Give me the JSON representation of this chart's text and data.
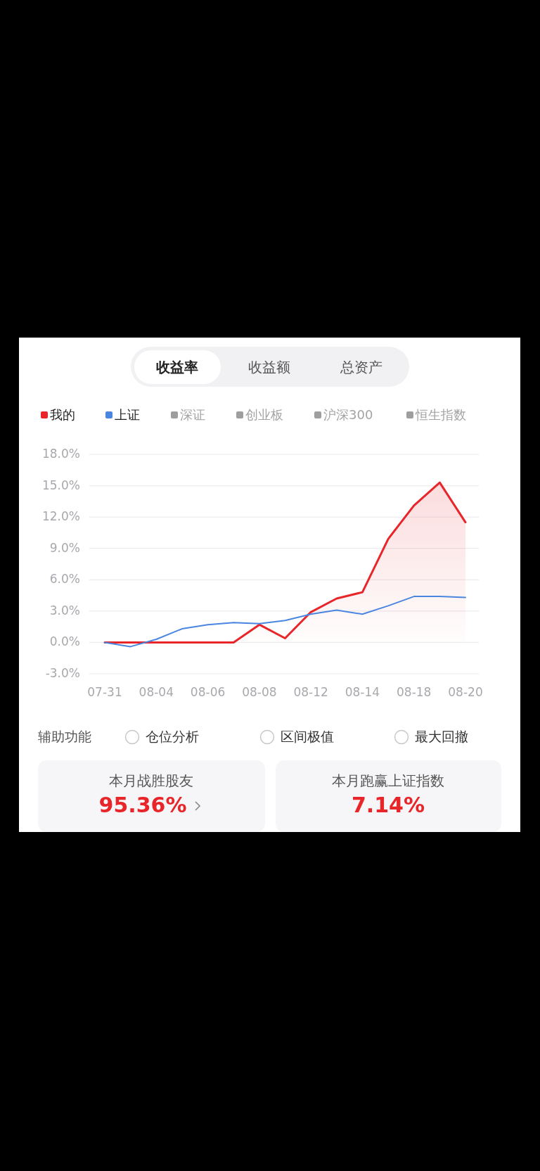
{
  "chart_data": {
    "type": "line",
    "categories": [
      "07-31",
      null,
      "08-04",
      null,
      "08-06",
      null,
      "08-08",
      null,
      "08-12",
      null,
      "08-14",
      null,
      "08-18",
      null,
      "08-20"
    ],
    "series": [
      {
        "name": "我的",
        "type": "area",
        "color": "#e8262a",
        "values": [
          0,
          0,
          0,
          0,
          0,
          0,
          1.7,
          0.4,
          2.9,
          4.2,
          4.8,
          9.9,
          13.1,
          15.3,
          11.5
        ]
      },
      {
        "name": "上证",
        "color": "#4a86e0",
        "values": [
          0,
          -0.4,
          0.3,
          1.3,
          1.7,
          1.9,
          1.8,
          2.1,
          2.7,
          3.1,
          2.7,
          3.5,
          4.4,
          4.4,
          4.3
        ]
      },
      {
        "name": "深证",
        "color": "#9e9e9e",
        "values": [
          null,
          null,
          null,
          null,
          null,
          null,
          null,
          null,
          null,
          null,
          null,
          null,
          null,
          null,
          null
        ]
      },
      {
        "name": "创业板",
        "color": "#9e9e9e",
        "values": [
          null,
          null,
          null,
          null,
          null,
          null,
          null,
          null,
          null,
          null,
          null,
          null,
          null,
          null,
          null
        ]
      },
      {
        "name": "沪深300",
        "color": "#9e9e9e",
        "values": [
          null,
          null,
          null,
          null,
          null,
          null,
          null,
          null,
          null,
          null,
          null,
          null,
          null,
          null,
          null
        ]
      },
      {
        "name": "恒生指数",
        "color": "#9e9e9e",
        "values": [
          null,
          null,
          null,
          null,
          null,
          null,
          null,
          null,
          null,
          null,
          null,
          null,
          null,
          null,
          null
        ]
      }
    ],
    "ylim": [
      -3,
      18
    ],
    "yticks": [
      {
        "value": -3,
        "label": "-3.0%"
      },
      {
        "value": 0,
        "label": "0.0%"
      },
      {
        "value": 3,
        "label": "3.0%"
      },
      {
        "value": 6,
        "label": "6.0%"
      },
      {
        "value": 9,
        "label": "9.0%"
      },
      {
        "value": 12,
        "label": "12.0%"
      },
      {
        "value": 15,
        "label": "15.0%"
      },
      {
        "value": 18,
        "label": "18.0%"
      }
    ],
    "grid": "y",
    "legend": "top left",
    "annotations": [
      "收益率",
      "收益额",
      "总资产",
      "辅助功能",
      "仓位分析",
      "区间极值",
      "最大回撤",
      "本月战胜股友",
      "95.36%",
      "本月跑赢上证指数",
      "7.14%"
    ]
  }
}
